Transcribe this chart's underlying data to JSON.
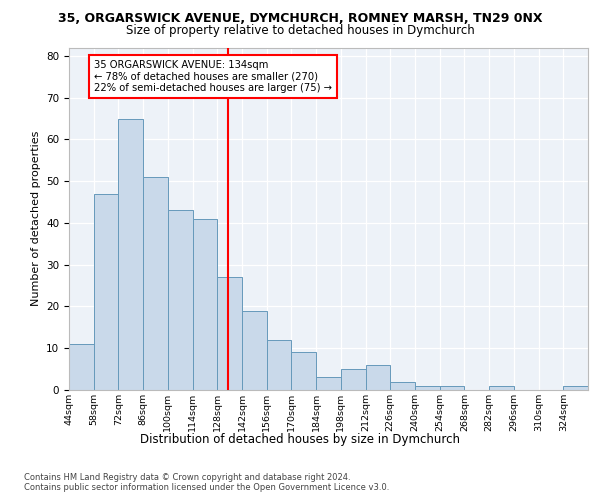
{
  "title1": "35, ORGARSWICK AVENUE, DYMCHURCH, ROMNEY MARSH, TN29 0NX",
  "title2": "Size of property relative to detached houses in Dymchurch",
  "xlabel": "Distribution of detached houses by size in Dymchurch",
  "ylabel": "Number of detached properties",
  "bar_values": [
    11,
    47,
    65,
    51,
    43,
    41,
    27,
    19,
    12,
    9,
    3,
    5,
    6,
    2,
    1,
    1,
    0,
    1,
    0,
    0,
    1
  ],
  "bin_labels": [
    "44sqm",
    "58sqm",
    "72sqm",
    "86sqm",
    "100sqm",
    "114sqm",
    "128sqm",
    "142sqm",
    "156sqm",
    "170sqm",
    "184sqm",
    "198sqm",
    "212sqm",
    "226sqm",
    "240sqm",
    "254sqm",
    "268sqm",
    "282sqm",
    "296sqm",
    "310sqm",
    "324sqm"
  ],
  "bar_color": "#c9d9ea",
  "bar_edge_color": "#6699bb",
  "annotation_text": "35 ORGARSWICK AVENUE: 134sqm\n← 78% of detached houses are smaller (270)\n22% of semi-detached houses are larger (75) →",
  "annotation_box_color": "white",
  "annotation_box_edge_color": "red",
  "vline_x": 134,
  "ylim_max": 82,
  "yticks": [
    0,
    10,
    20,
    30,
    40,
    50,
    60,
    70,
    80
  ],
  "footer1": "Contains HM Land Registry data © Crown copyright and database right 2024.",
  "footer2": "Contains public sector information licensed under the Open Government Licence v3.0.",
  "plot_bg_color": "#edf2f8",
  "fig_bg_color": "white"
}
